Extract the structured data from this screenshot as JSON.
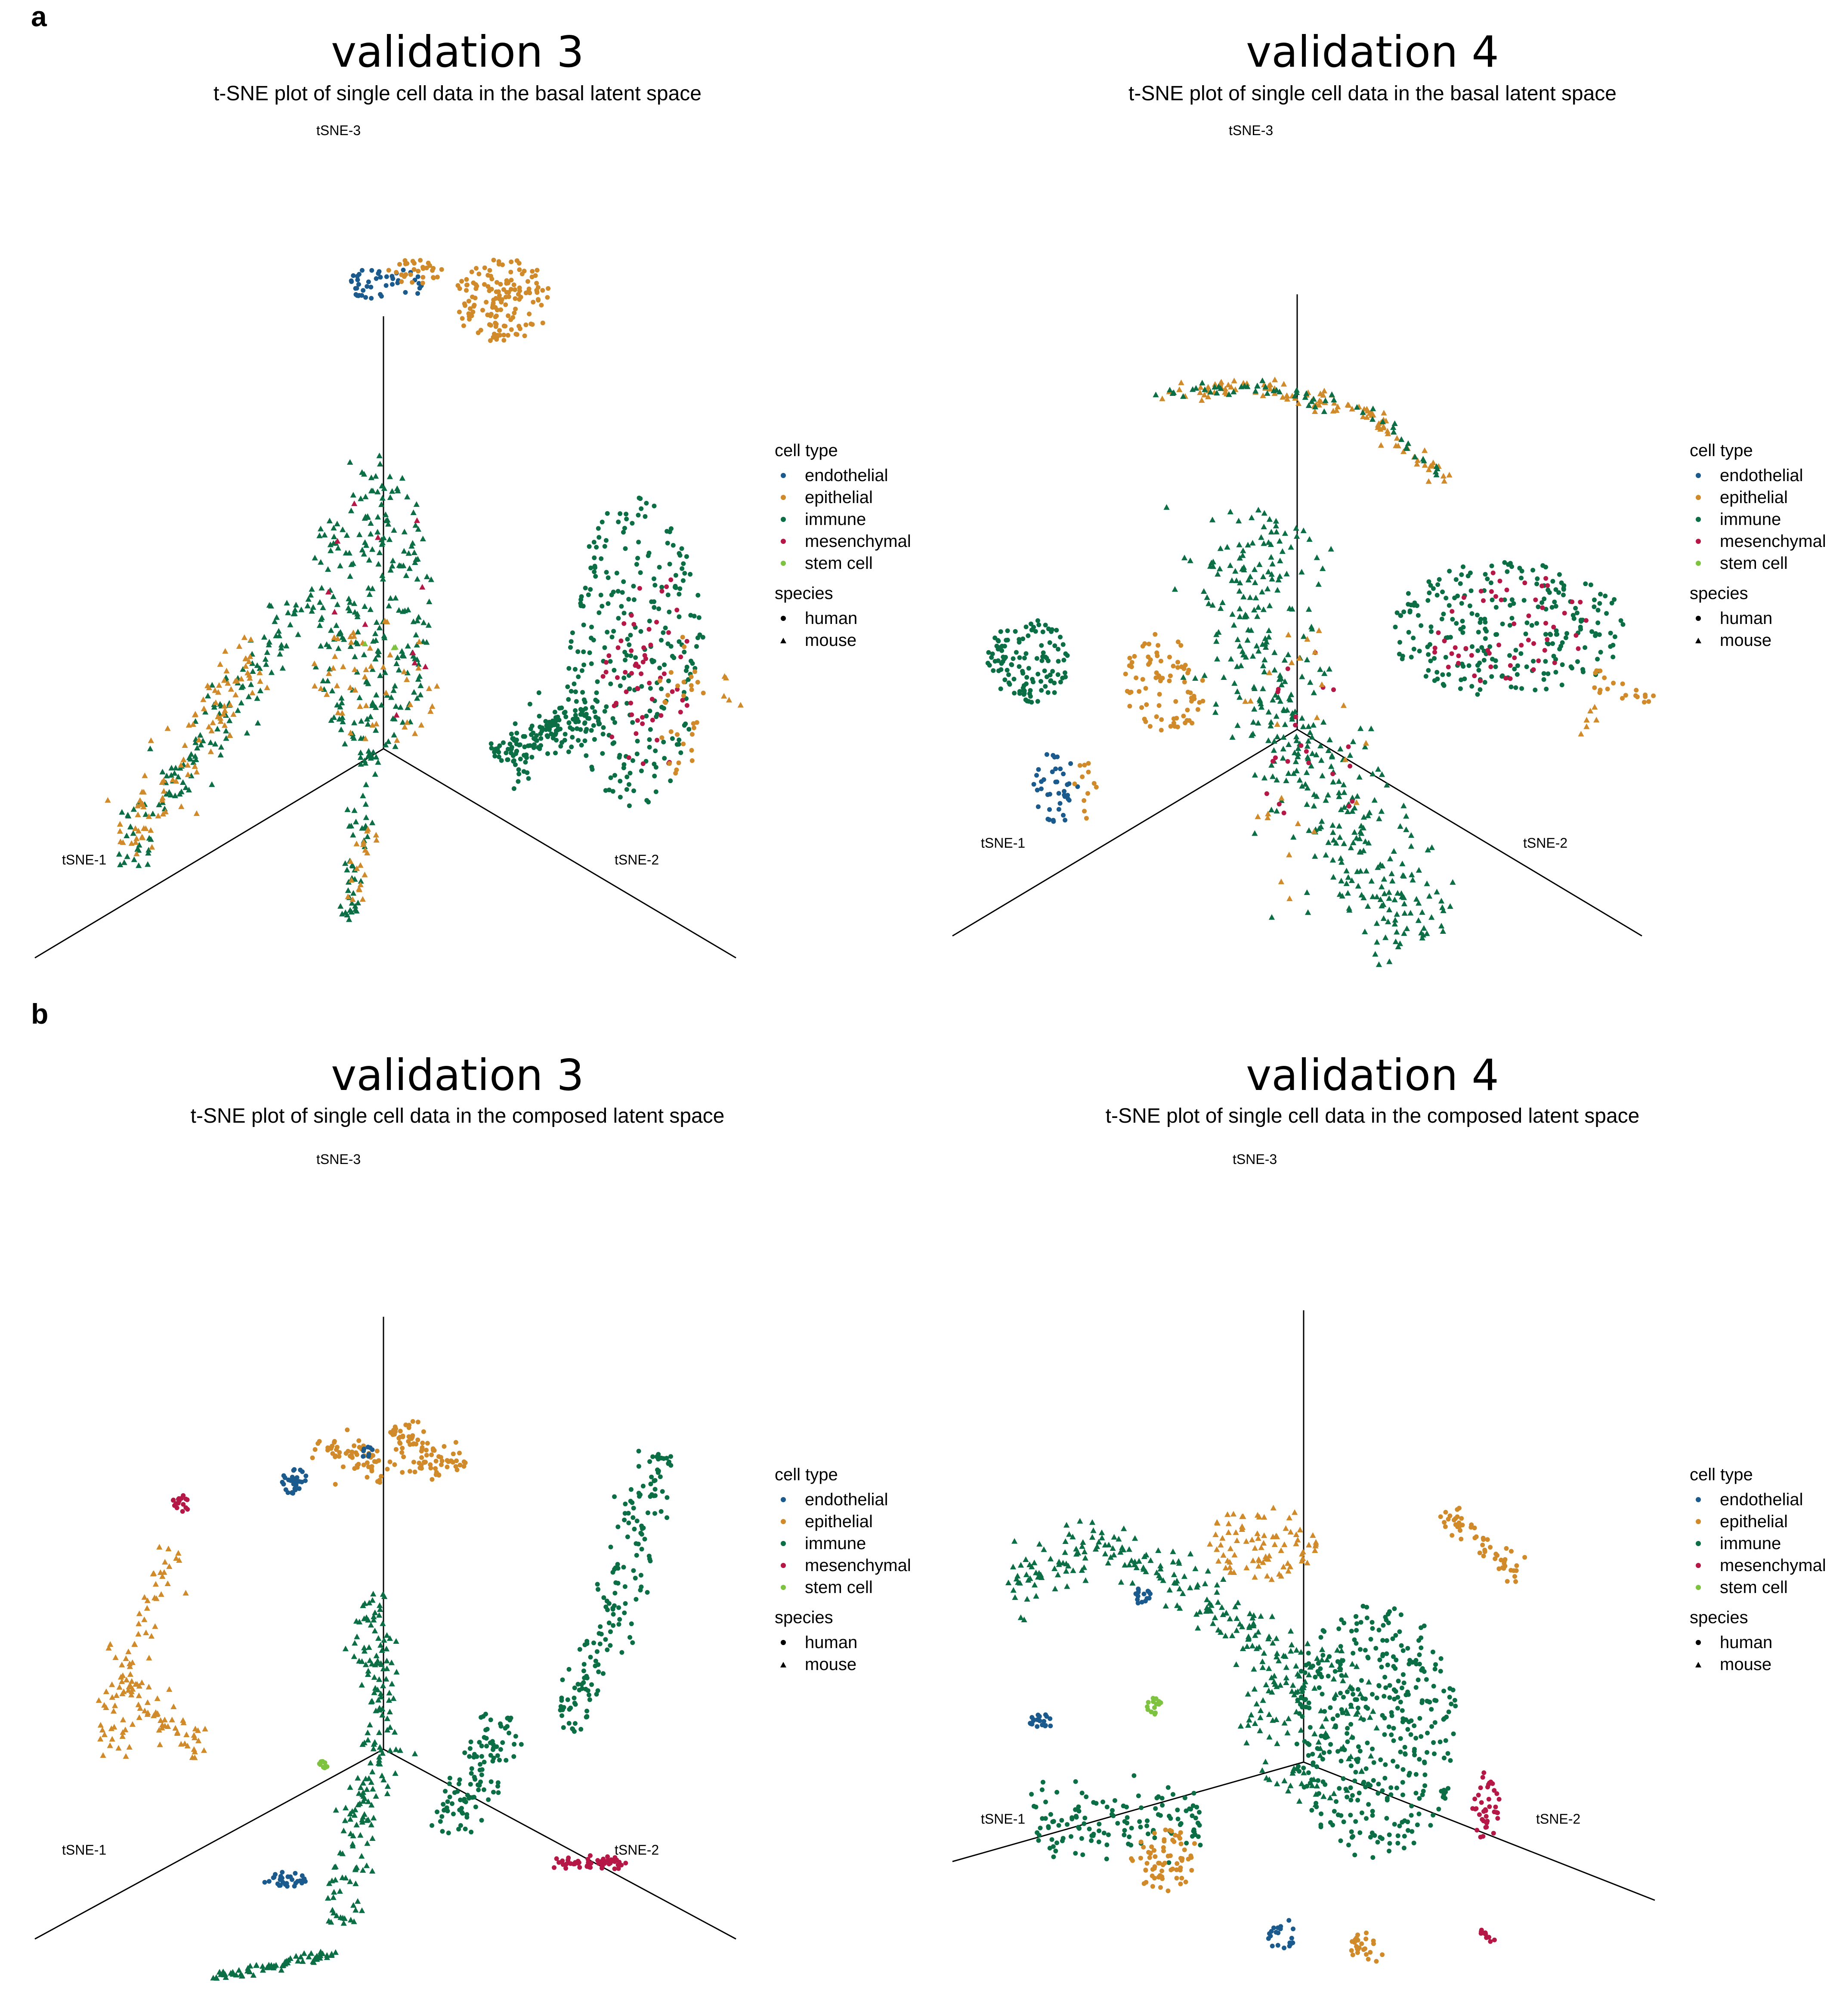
{
  "panels": {
    "a": {
      "label": "a"
    },
    "b": {
      "label": "b"
    }
  },
  "colors": {
    "endothelial": "#1a5a8c",
    "epithelial": "#d08a2a",
    "immune": "#0b6e45",
    "mesenchymal": "#b51746",
    "stem cell": "#7ec33f"
  },
  "legend": {
    "cell_type_title": "cell type",
    "cell_types": [
      "endothelial",
      "epithelial",
      "immune",
      "mesenchymal",
      "stem cell"
    ],
    "species_title": "species",
    "species": [
      {
        "label": "human",
        "marker": "circle"
      },
      {
        "label": "mouse",
        "marker": "triangle"
      }
    ]
  },
  "chart_data": [
    {
      "type": "scatter",
      "projection": "3d",
      "panel": "a",
      "title": "validation 3",
      "subtitle": "t-SNE plot of single cell data in the basal latent space",
      "axes": {
        "x": "tSNE-1",
        "y": "tSNE-2",
        "z": "tSNE-3"
      },
      "clusters": [
        {
          "type": "endothelial",
          "species": "human",
          "shape": "blob",
          "pts": [
            [
              270,
              205
            ],
            [
              330,
              235
            ]
          ],
          "n": 45
        },
        {
          "type": "epithelial",
          "species": "human",
          "shape": "blob",
          "pts": [
            [
              300,
              200
            ],
            [
              345,
              220
            ]
          ],
          "n": 30
        },
        {
          "type": "epithelial",
          "species": "human",
          "shape": "blob",
          "pts": [
            [
              350,
              200
            ],
            [
              430,
              265
            ]
          ],
          "n": 150
        },
        {
          "type": "immune",
          "species": "human",
          "shape": "blob",
          "pts": [
            [
              440,
              385
            ],
            [
              545,
              625
            ]
          ],
          "n": 260
        },
        {
          "type": "mesenchymal",
          "species": "human",
          "shape": "blob",
          "pts": [
            [
              465,
              440
            ],
            [
              540,
              600
            ]
          ],
          "n": 60
        },
        {
          "type": "epithelial",
          "species": "human",
          "shape": "blob",
          "pts": [
            [
              510,
              470
            ],
            [
              545,
              610
            ]
          ],
          "n": 30
        },
        {
          "type": "immune",
          "species": "human",
          "shape": "line",
          "pts": [
            [
              385,
              590
            ],
            [
              460,
              550
            ]
          ],
          "w": 22,
          "n": 160
        },
        {
          "type": "immune",
          "species": "mouse",
          "shape": "blob",
          "pts": [
            [
              240,
              350
            ],
            [
              335,
              590
            ]
          ],
          "n": 260
        },
        {
          "type": "epithelial",
          "species": "mouse",
          "shape": "blob",
          "pts": [
            [
              240,
              480
            ],
            [
              340,
              580
            ]
          ],
          "n": 50
        },
        {
          "type": "mesenchymal",
          "species": "mouse",
          "shape": "blob",
          "pts": [
            [
              250,
              380
            ],
            [
              340,
              560
            ]
          ],
          "n": 12
        },
        {
          "type": "immune",
          "species": "mouse",
          "shape": "line",
          "pts": [
            [
              90,
              670
            ],
            [
              240,
              460
            ]
          ],
          "w": 20,
          "n": 140
        },
        {
          "type": "epithelial",
          "species": "mouse",
          "shape": "line",
          "pts": [
            [
              95,
              660
            ],
            [
              200,
              495
            ]
          ],
          "w": 26,
          "n": 100
        },
        {
          "type": "immune",
          "species": "mouse",
          "shape": "line",
          "pts": [
            [
              270,
              715
            ],
            [
              285,
              580
            ]
          ],
          "w": 12,
          "n": 50
        },
        {
          "type": "epithelial",
          "species": "mouse",
          "shape": "line",
          "pts": [
            [
              270,
              700
            ],
            [
              285,
              640
            ]
          ],
          "w": 10,
          "n": 20
        },
        {
          "type": "epithelial",
          "species": "mouse",
          "shape": "blob",
          "pts": [
            [
              555,
              520
            ],
            [
              575,
              555
            ]
          ],
          "n": 5
        },
        {
          "type": "stem cell",
          "species": "mouse",
          "shape": "blob",
          "pts": [
            [
              280,
              450
            ],
            [
              310,
              520
            ]
          ],
          "n": 3
        }
      ]
    },
    {
      "type": "scatter",
      "projection": "3d",
      "panel": "a",
      "title": "validation 4",
      "subtitle": "t-SNE plot of single cell data in the basal latent space",
      "axes": {
        "x": "tSNE-1",
        "y": "tSNE-2",
        "z": "tSNE-3"
      },
      "clusters": [
        {
          "type": "epithelial",
          "species": "mouse",
          "shape": "line",
          "pts": [
            [
              895,
              305
            ],
            [
              980,
              300
            ],
            [
              1060,
              320
            ],
            [
              1120,
              372
            ]
          ],
          "w": 10,
          "n": 110
        },
        {
          "type": "immune",
          "species": "mouse",
          "shape": "line",
          "pts": [
            [
              895,
              305
            ],
            [
              980,
              300
            ],
            [
              1060,
              320
            ],
            [
              1120,
              372
            ]
          ],
          "w": 8,
          "n": 60
        },
        {
          "type": "immune",
          "species": "human",
          "shape": "blob",
          "pts": [
            [
              1075,
              435
            ],
            [
              1260,
              540
            ]
          ],
          "n": 250
        },
        {
          "type": "mesenchymal",
          "species": "human",
          "shape": "blob",
          "pts": [
            [
              1100,
              440
            ],
            [
              1240,
              530
            ]
          ],
          "n": 55
        },
        {
          "type": "epithelial",
          "species": "human",
          "shape": "line",
          "pts": [
            [
              1230,
              525
            ],
            [
              1280,
              542
            ]
          ],
          "w": 12,
          "n": 20
        },
        {
          "type": "epithelial",
          "species": "mouse",
          "shape": "line",
          "pts": [
            [
              1220,
              575
            ],
            [
              1240,
              550
            ]
          ],
          "w": 8,
          "n": 6
        },
        {
          "type": "immune",
          "species": "human",
          "shape": "blob",
          "pts": [
            [
              765,
              480
            ],
            [
              830,
              545
            ]
          ],
          "n": 120
        },
        {
          "type": "epithelial",
          "species": "human",
          "shape": "blob",
          "pts": [
            [
              870,
              490
            ],
            [
              935,
              570
            ]
          ],
          "n": 80
        },
        {
          "type": "endothelial",
          "species": "human",
          "shape": "blob",
          "pts": [
            [
              800,
              580
            ],
            [
              835,
              640
            ]
          ],
          "n": 40
        },
        {
          "type": "epithelial",
          "species": "human",
          "shape": "blob",
          "pts": [
            [
              830,
              585
            ],
            [
              850,
              635
            ]
          ],
          "n": 12
        },
        {
          "type": "immune",
          "species": "mouse",
          "shape": "line",
          "pts": [
            [
              995,
              400
            ],
            [
              960,
              480
            ],
            [
              1000,
              560
            ],
            [
              1040,
              640
            ],
            [
              1100,
              735
            ]
          ],
          "w": 55,
          "n": 420
        },
        {
          "type": "mesenchymal",
          "species": "human",
          "shape": "blob",
          "pts": [
            [
              980,
              500
            ],
            [
              1050,
              680
            ]
          ],
          "n": 22
        },
        {
          "type": "epithelial",
          "species": "mouse",
          "shape": "blob",
          "pts": [
            [
              960,
              480
            ],
            [
              1060,
              700
            ]
          ],
          "n": 25
        }
      ]
    },
    {
      "type": "scatter",
      "projection": "3d",
      "panel": "b",
      "title": "validation 3",
      "subtitle": "t-SNE plot of single cell data in the composed latent space",
      "axes": {
        "x": "tSNE-1",
        "y": "tSNE-2",
        "z": "tSNE-3"
      },
      "clusters": [
        {
          "type": "endothelial",
          "species": "human",
          "shape": "blob",
          "pts": [
            [
              218,
              1137
            ],
            [
              238,
              1158
            ]
          ],
          "n": 30
        },
        {
          "type": "epithelial",
          "species": "human",
          "shape": "line",
          "pts": [
            [
              245,
              1118
            ],
            [
              300,
              1140
            ]
          ],
          "w": 16,
          "n": 60
        },
        {
          "type": "endothelial",
          "species": "human",
          "shape": "blob",
          "pts": [
            [
              280,
              1120
            ],
            [
              290,
              1130
            ]
          ],
          "n": 8
        },
        {
          "type": "epithelial",
          "species": "human",
          "shape": "line",
          "pts": [
            [
              305,
              1105
            ],
            [
              330,
              1135
            ],
            [
              360,
              1130
            ]
          ],
          "w": 18,
          "n": 90
        },
        {
          "type": "mesenchymal",
          "species": "human",
          "shape": "blob",
          "pts": [
            [
              133,
              1158
            ],
            [
              147,
              1172
            ]
          ],
          "n": 18
        },
        {
          "type": "epithelial",
          "species": "mouse",
          "shape": "line",
          "pts": [
            [
              135,
              1200
            ],
            [
              105,
              1270
            ],
            [
              80,
              1360
            ]
          ],
          "w": 18,
          "n": 70
        },
        {
          "type": "epithelial",
          "species": "mouse",
          "shape": "line",
          "pts": [
            [
              90,
              1300
            ],
            [
              160,
              1360
            ]
          ],
          "w": 18,
          "n": 60
        },
        {
          "type": "immune",
          "species": "human",
          "shape": "line",
          "pts": [
            [
              510,
              1125
            ],
            [
              470,
              1260
            ],
            [
              440,
              1340
            ]
          ],
          "w": 22,
          "n": 170
        },
        {
          "type": "immune",
          "species": "mouse",
          "shape": "line",
          "pts": [
            [
              285,
              1235
            ],
            [
              295,
              1350
            ],
            [
              260,
              1490
            ]
          ],
          "w": 22,
          "n": 190
        },
        {
          "type": "immune",
          "species": "human",
          "shape": "line",
          "pts": [
            [
              395,
              1330
            ],
            [
              345,
              1420
            ]
          ],
          "w": 24,
          "n": 110
        },
        {
          "type": "stem cell",
          "species": "human",
          "shape": "blob",
          "pts": [
            [
              247,
              1362
            ],
            [
              255,
              1370
            ]
          ],
          "n": 12
        },
        {
          "type": "endothelial",
          "species": "human",
          "shape": "blob",
          "pts": [
            [
              203,
              1450
            ],
            [
              238,
              1462
            ]
          ],
          "n": 30
        },
        {
          "type": "mesenchymal",
          "species": "human",
          "shape": "line",
          "pts": [
            [
              428,
              1442
            ],
            [
              485,
              1444
            ]
          ],
          "w": 6,
          "n": 55
        },
        {
          "type": "immune",
          "species": "mouse",
          "shape": "line",
          "pts": [
            [
              165,
              1533
            ],
            [
              260,
              1512
            ]
          ],
          "w": 6,
          "n": 70
        }
      ]
    },
    {
      "type": "scatter",
      "projection": "3d",
      "panel": "b",
      "title": "validation 4",
      "subtitle": "t-SNE plot of single cell data in the composed latent space",
      "axes": {
        "x": "tSNE-1",
        "y": "tSNE-2",
        "z": "tSNE-3"
      },
      "clusters": [
        {
          "type": "immune",
          "species": "mouse",
          "shape": "line",
          "pts": [
            [
              780,
              1225
            ],
            [
              860,
              1195
            ],
            [
              940,
              1240
            ],
            [
              1010,
              1310
            ]
          ],
          "w": 28,
          "n": 200
        },
        {
          "type": "epithelial",
          "species": "mouse",
          "shape": "blob",
          "pts": [
            [
              935,
              1165
            ],
            [
              1020,
              1225
            ]
          ],
          "n": 85
        },
        {
          "type": "epithelial",
          "species": "human",
          "shape": "line",
          "pts": [
            [
              1120,
              1170
            ],
            [
              1180,
              1225
            ]
          ],
          "w": 12,
          "n": 55
        },
        {
          "type": "endothelial",
          "species": "human",
          "shape": "blob",
          "pts": [
            [
              878,
              1230
            ],
            [
              892,
              1245
            ]
          ],
          "n": 15
        },
        {
          "type": "stem cell",
          "species": "human",
          "shape": "blob",
          "pts": [
            [
              888,
              1315
            ],
            [
              902,
              1328
            ]
          ],
          "n": 15
        },
        {
          "type": "endothelial",
          "species": "human",
          "shape": "blob",
          "pts": [
            [
              795,
              1328
            ],
            [
              820,
              1338
            ]
          ],
          "n": 20
        },
        {
          "type": "immune",
          "species": "human",
          "shape": "blob",
          "pts": [
            [
              1000,
              1240
            ],
            [
              1130,
              1440
            ]
          ],
          "n": 380
        },
        {
          "type": "immune",
          "species": "mouse",
          "shape": "blob",
          "pts": [
            [
              960,
              1270
            ],
            [
              1070,
              1400
            ]
          ],
          "n": 120
        },
        {
          "type": "immune",
          "species": "human",
          "shape": "line",
          "pts": [
            [
              800,
              1415
            ],
            [
              930,
              1410
            ]
          ],
          "w": 30,
          "n": 130
        },
        {
          "type": "epithelial",
          "species": "human",
          "shape": "blob",
          "pts": [
            [
              875,
              1415
            ],
            [
              930,
              1465
            ]
          ],
          "n": 70
        },
        {
          "type": "mesenchymal",
          "species": "human",
          "shape": "blob",
          "pts": [
            [
              1140,
              1372
            ],
            [
              1162,
              1425
            ]
          ],
          "n": 40
        },
        {
          "type": "endothelial",
          "species": "human",
          "shape": "blob",
          "pts": [
            [
              980,
              1485
            ],
            [
              1005,
              1510
            ]
          ],
          "n": 20
        },
        {
          "type": "epithelial",
          "species": "human",
          "shape": "blob",
          "pts": [
            [
              1045,
              1495
            ],
            [
              1072,
              1525
            ]
          ],
          "n": 25
        },
        {
          "type": "mesenchymal",
          "species": "human",
          "shape": "blob",
          "pts": [
            [
              1138,
              1495
            ],
            [
              1160,
              1505
            ]
          ],
          "n": 10
        }
      ]
    }
  ]
}
